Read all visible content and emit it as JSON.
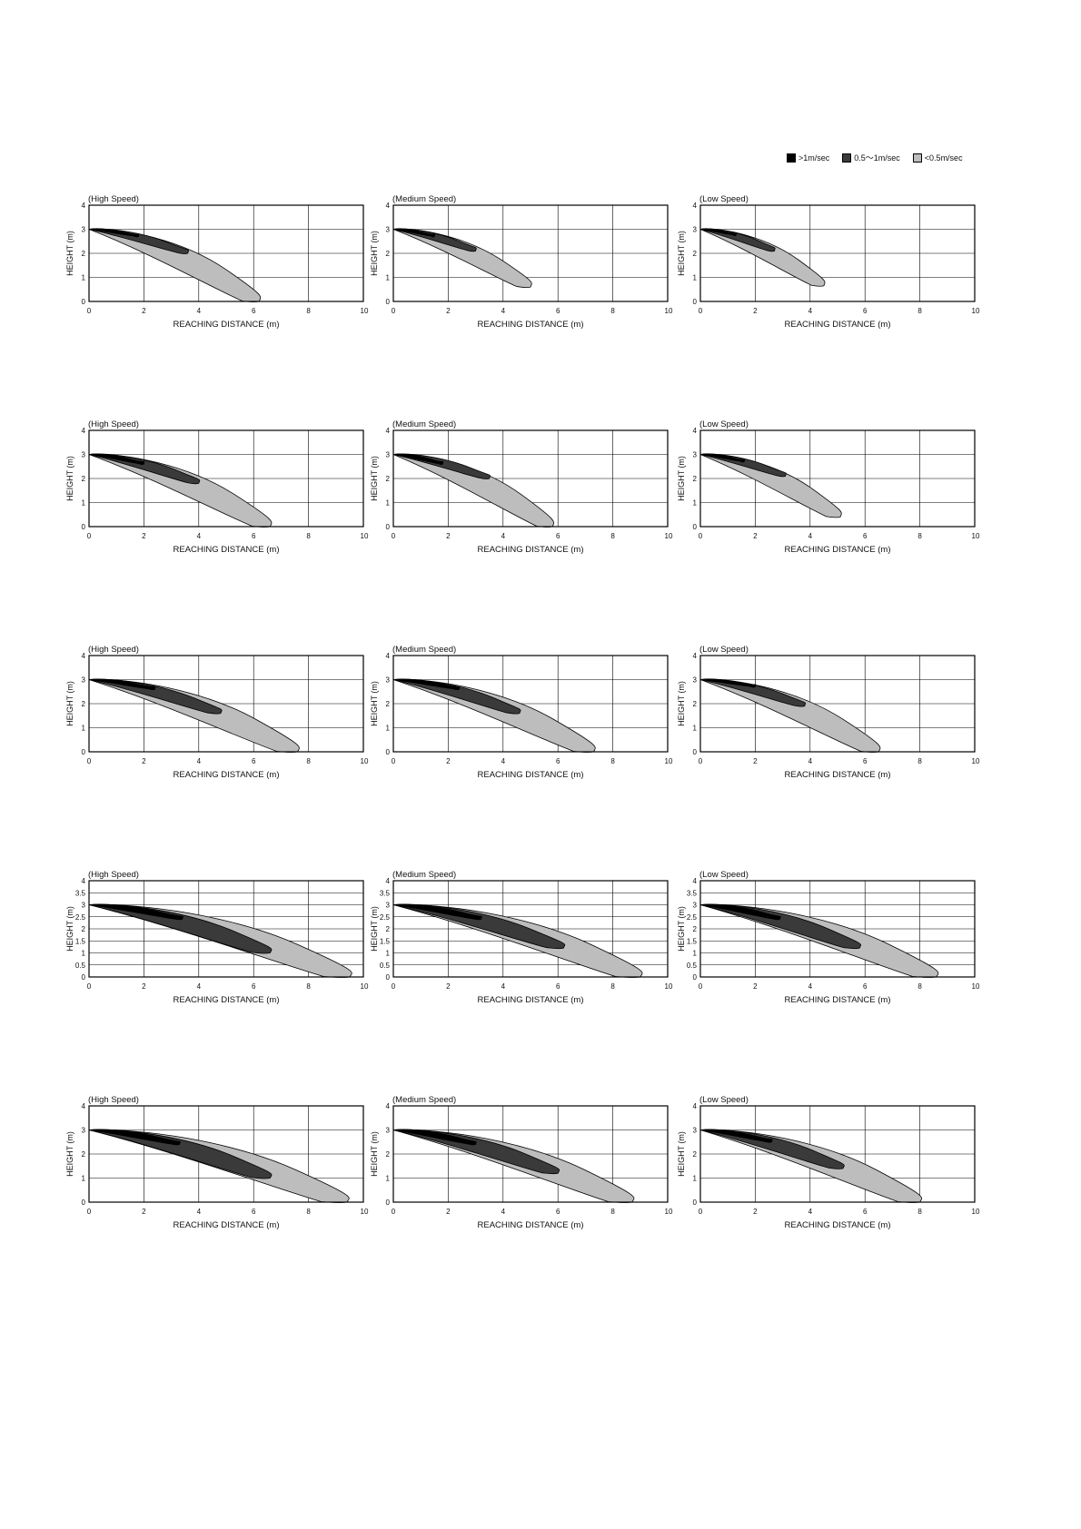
{
  "legend": [
    {
      "label": ">1m/sec",
      "color": "#000000"
    },
    {
      "label": "0.5〜1m/sec",
      "color": "#3a3a3a"
    },
    {
      "label": "<0.5m/sec",
      "color": "#bdbdbd"
    }
  ],
  "chart_data": [
    {
      "type": "area",
      "title": "(High Speed)",
      "xlabel": "REACHING DISTANCE (m)",
      "ylabel": "HEIGHT (m)",
      "xlim": [
        0,
        10
      ],
      "ylim": [
        0,
        4
      ],
      "xticks": [
        "0",
        "2",
        "4",
        "6",
        "8",
        "10"
      ],
      "yticks": [
        "0",
        "1",
        "2",
        "3",
        "4"
      ],
      "series": [
        {
          "name": "<0.5m/sec",
          "reach": 6.2,
          "end_y": 0.0
        },
        {
          "name": "0.5〜1m/sec",
          "reach": 3.6,
          "end_y": 2.0
        },
        {
          "name": ">1m/sec",
          "reach": 1.8,
          "end_y": 2.7
        }
      ]
    },
    {
      "type": "area",
      "title": "(Medium Speed)",
      "xlabel": "REACHING DISTANCE (m)",
      "ylabel": "HEIGHT (m)",
      "xlim": [
        0,
        10
      ],
      "ylim": [
        0,
        4
      ],
      "xticks": [
        "0",
        "2",
        "4",
        "6",
        "8",
        "10"
      ],
      "yticks": [
        "0",
        "1",
        "2",
        "3",
        "4"
      ],
      "series": [
        {
          "name": "<0.5m/sec",
          "reach": 5.0,
          "end_y": 0.6
        },
        {
          "name": "0.5〜1m/sec",
          "reach": 3.0,
          "end_y": 2.1
        },
        {
          "name": ">1m/sec",
          "reach": 1.5,
          "end_y": 2.7
        }
      ]
    },
    {
      "type": "area",
      "title": "(Low Speed)",
      "xlabel": "REACHING DISTANCE (m)",
      "ylabel": "HEIGHT (m)",
      "xlim": [
        0,
        10
      ],
      "ylim": [
        0,
        4
      ],
      "xticks": [
        "0",
        "2",
        "4",
        "6",
        "8",
        "10"
      ],
      "yticks": [
        "0",
        "1",
        "2",
        "3",
        "4"
      ],
      "series": [
        {
          "name": "<0.5m/sec",
          "reach": 4.5,
          "end_y": 0.65
        },
        {
          "name": "0.5〜1m/sec",
          "reach": 2.7,
          "end_y": 2.1
        },
        {
          "name": ">1m/sec",
          "reach": 1.3,
          "end_y": 2.75
        }
      ]
    },
    {
      "type": "area",
      "title": "(High Speed)",
      "xlabel": "REACHING DISTANCE (m)",
      "ylabel": "HEIGHT (m)",
      "xlim": [
        0,
        10
      ],
      "ylim": [
        0,
        4
      ],
      "xticks": [
        "0",
        "2",
        "4",
        "6",
        "8",
        "10"
      ],
      "yticks": [
        "0",
        "1",
        "2",
        "3",
        "4"
      ],
      "series": [
        {
          "name": "<0.5m/sec",
          "reach": 6.6,
          "end_y": 0.0
        },
        {
          "name": "0.5〜1m/sec",
          "reach": 4.0,
          "end_y": 1.8
        },
        {
          "name": ">1m/sec",
          "reach": 2.0,
          "end_y": 2.6
        }
      ]
    },
    {
      "type": "area",
      "title": "(Medium Speed)",
      "xlabel": "REACHING DISTANCE (m)",
      "ylabel": "HEIGHT (m)",
      "xlim": [
        0,
        10
      ],
      "ylim": [
        0,
        4
      ],
      "xticks": [
        "0",
        "2",
        "4",
        "6",
        "8",
        "10"
      ],
      "yticks": [
        "0",
        "1",
        "2",
        "3",
        "4"
      ],
      "series": [
        {
          "name": "<0.5m/sec",
          "reach": 5.8,
          "end_y": 0.0
        },
        {
          "name": "0.5〜1m/sec",
          "reach": 3.5,
          "end_y": 2.0
        },
        {
          "name": ">1m/sec",
          "reach": 1.8,
          "end_y": 2.6
        }
      ]
    },
    {
      "type": "area",
      "title": "(Low Speed)",
      "xlabel": "REACHING DISTANCE (m)",
      "ylabel": "HEIGHT (m)",
      "xlim": [
        0,
        10
      ],
      "ylim": [
        0,
        4
      ],
      "xticks": [
        "0",
        "2",
        "4",
        "6",
        "8",
        "10"
      ],
      "yticks": [
        "0",
        "1",
        "2",
        "3",
        "4"
      ],
      "series": [
        {
          "name": "<0.5m/sec",
          "reach": 5.1,
          "end_y": 0.4
        },
        {
          "name": "0.5〜1m/sec",
          "reach": 3.1,
          "end_y": 2.1
        },
        {
          "name": ">1m/sec",
          "reach": 1.6,
          "end_y": 2.7
        }
      ]
    },
    {
      "type": "area",
      "title": "(High Speed)",
      "xlabel": "REACHING DISTANCE (m)",
      "ylabel": "HEIGHT (m)",
      "xlim": [
        0,
        10
      ],
      "ylim": [
        0,
        4
      ],
      "xticks": [
        "0",
        "2",
        "4",
        "6",
        "8",
        "10"
      ],
      "yticks": [
        "0",
        "1",
        "2",
        "3",
        "4"
      ],
      "series": [
        {
          "name": "<0.5m/sec",
          "reach": 7.6,
          "end_y": 0.0
        },
        {
          "name": "0.5〜1m/sec",
          "reach": 4.8,
          "end_y": 1.6
        },
        {
          "name": ">1m/sec",
          "reach": 2.4,
          "end_y": 2.6
        }
      ]
    },
    {
      "type": "area",
      "title": "(Medium Speed)",
      "xlabel": "REACHING DISTANCE (m)",
      "ylabel": "HEIGHT (m)",
      "xlim": [
        0,
        10
      ],
      "ylim": [
        0,
        4
      ],
      "xticks": [
        "0",
        "2",
        "4",
        "6",
        "8",
        "10"
      ],
      "yticks": [
        "0",
        "1",
        "2",
        "3",
        "4"
      ],
      "series": [
        {
          "name": "<0.5m/sec",
          "reach": 7.3,
          "end_y": 0.0
        },
        {
          "name": "0.5〜1m/sec",
          "reach": 4.6,
          "end_y": 1.6
        },
        {
          "name": ">1m/sec",
          "reach": 2.4,
          "end_y": 2.6
        }
      ]
    },
    {
      "type": "area",
      "title": "(Low Speed)",
      "xlabel": "REACHING DISTANCE (m)",
      "ylabel": "HEIGHT (m)",
      "xlim": [
        0,
        10
      ],
      "ylim": [
        0,
        4
      ],
      "xticks": [
        "0",
        "2",
        "4",
        "6",
        "8",
        "10"
      ],
      "yticks": [
        "0",
        "1",
        "2",
        "3",
        "4"
      ],
      "series": [
        {
          "name": "<0.5m/sec",
          "reach": 6.5,
          "end_y": 0.0
        },
        {
          "name": "0.5〜1m/sec",
          "reach": 3.8,
          "end_y": 1.9
        },
        {
          "name": ">1m/sec",
          "reach": 2.0,
          "end_y": 2.7
        }
      ]
    },
    {
      "type": "area",
      "title": "(High Speed)",
      "xlabel": "REACHING DISTANCE (m)",
      "ylabel": "HEIGHT (m)",
      "xlim": [
        0,
        10
      ],
      "ylim": [
        0,
        4
      ],
      "xticks": [
        "0",
        "2",
        "4",
        "6",
        "8",
        "10"
      ],
      "yticks": [
        "0",
        "0.5",
        "1",
        "1.5",
        "2",
        "2.5",
        "3",
        "3.5",
        "4"
      ],
      "series": [
        {
          "name": "<0.5m/sec",
          "reach": 9.5,
          "end_y": 0.0
        },
        {
          "name": "0.5〜1m/sec",
          "reach": 6.6,
          "end_y": 1.0
        },
        {
          "name": ">1m/sec",
          "reach": 3.4,
          "end_y": 2.4
        }
      ]
    },
    {
      "type": "area",
      "title": "(Medium Speed)",
      "xlabel": "REACHING DISTANCE (m)",
      "ylabel": "HEIGHT (m)",
      "xlim": [
        0,
        10
      ],
      "ylim": [
        0,
        4
      ],
      "xticks": [
        "0",
        "2",
        "4",
        "6",
        "8",
        "10"
      ],
      "yticks": [
        "0",
        "0.5",
        "1",
        "1.5",
        "2",
        "2.5",
        "3",
        "3.5",
        "4"
      ],
      "series": [
        {
          "name": "<0.5m/sec",
          "reach": 9.0,
          "end_y": 0.0
        },
        {
          "name": "0.5〜1m/sec",
          "reach": 6.2,
          "end_y": 1.2
        },
        {
          "name": ">1m/sec",
          "reach": 3.2,
          "end_y": 2.4
        }
      ]
    },
    {
      "type": "area",
      "title": "(Low Speed)",
      "xlabel": "REACHING DISTANCE (m)",
      "ylabel": "HEIGHT (m)",
      "xlim": [
        0,
        10
      ],
      "ylim": [
        0,
        4
      ],
      "xticks": [
        "0",
        "2",
        "4",
        "6",
        "8",
        "10"
      ],
      "yticks": [
        "0",
        "0.5",
        "1",
        "1.5",
        "2",
        "2.5",
        "3",
        "3.5",
        "4"
      ],
      "series": [
        {
          "name": "<0.5m/sec",
          "reach": 8.6,
          "end_y": 0.0
        },
        {
          "name": "0.5〜1m/sec",
          "reach": 5.8,
          "end_y": 1.2
        },
        {
          "name": ">1m/sec",
          "reach": 2.9,
          "end_y": 2.4
        }
      ]
    },
    {
      "type": "area",
      "title": "(High Speed)",
      "xlabel": "REACHING DISTANCE (m)",
      "ylabel": "HEIGHT (m)",
      "xlim": [
        0,
        10
      ],
      "ylim": [
        0,
        4
      ],
      "xticks": [
        "0",
        "2",
        "4",
        "6",
        "8",
        "10"
      ],
      "yticks": [
        "0",
        "1",
        "2",
        "3",
        "4"
      ],
      "series": [
        {
          "name": "<0.5m/sec",
          "reach": 9.4,
          "end_y": 0.0
        },
        {
          "name": "0.5〜1m/sec",
          "reach": 6.6,
          "end_y": 1.0
        },
        {
          "name": ">1m/sec",
          "reach": 3.3,
          "end_y": 2.4
        }
      ]
    },
    {
      "type": "area",
      "title": "(Medium Speed)",
      "xlabel": "REACHING DISTANCE (m)",
      "ylabel": "HEIGHT (m)",
      "xlim": [
        0,
        10
      ],
      "ylim": [
        0,
        4
      ],
      "xticks": [
        "0",
        "2",
        "4",
        "6",
        "8",
        "10"
      ],
      "yticks": [
        "0",
        "1",
        "2",
        "3",
        "4"
      ],
      "series": [
        {
          "name": "<0.5m/sec",
          "reach": 8.7,
          "end_y": 0.0
        },
        {
          "name": "0.5〜1m/sec",
          "reach": 6.0,
          "end_y": 1.2
        },
        {
          "name": ">1m/sec",
          "reach": 3.0,
          "end_y": 2.4
        }
      ]
    },
    {
      "type": "area",
      "title": "(Low Speed)",
      "xlabel": "REACHING DISTANCE (m)",
      "ylabel": "HEIGHT (m)",
      "xlim": [
        0,
        10
      ],
      "ylim": [
        0,
        4
      ],
      "xticks": [
        "0",
        "2",
        "4",
        "6",
        "8",
        "10"
      ],
      "yticks": [
        "0",
        "1",
        "2",
        "3",
        "4"
      ],
      "series": [
        {
          "name": "<0.5m/sec",
          "reach": 8.0,
          "end_y": 0.0
        },
        {
          "name": "0.5〜1m/sec",
          "reach": 5.2,
          "end_y": 1.4
        },
        {
          "name": ">1m/sec",
          "reach": 2.6,
          "end_y": 2.5
        }
      ]
    }
  ]
}
